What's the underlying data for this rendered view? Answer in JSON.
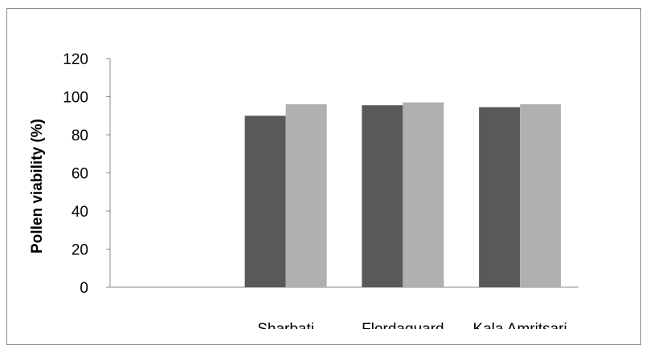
{
  "chart_data": {
    "type": "bar",
    "title": "",
    "xlabel": "",
    "ylabel": "Pollen viability (%)",
    "ylim": [
      0,
      120
    ],
    "yticks": [
      0,
      20,
      40,
      60,
      80,
      100,
      120
    ],
    "grid": false,
    "legend": "none",
    "categories": [
      "",
      "Sharbati",
      "Flordaguard",
      "Kala Amritsari"
    ],
    "series": [
      {
        "values": [
          null,
          90,
          95.5,
          94.5
        ],
        "color": "#595959"
      },
      {
        "values": [
          null,
          96,
          97,
          96
        ],
        "color": "#b0b0b0"
      }
    ]
  }
}
